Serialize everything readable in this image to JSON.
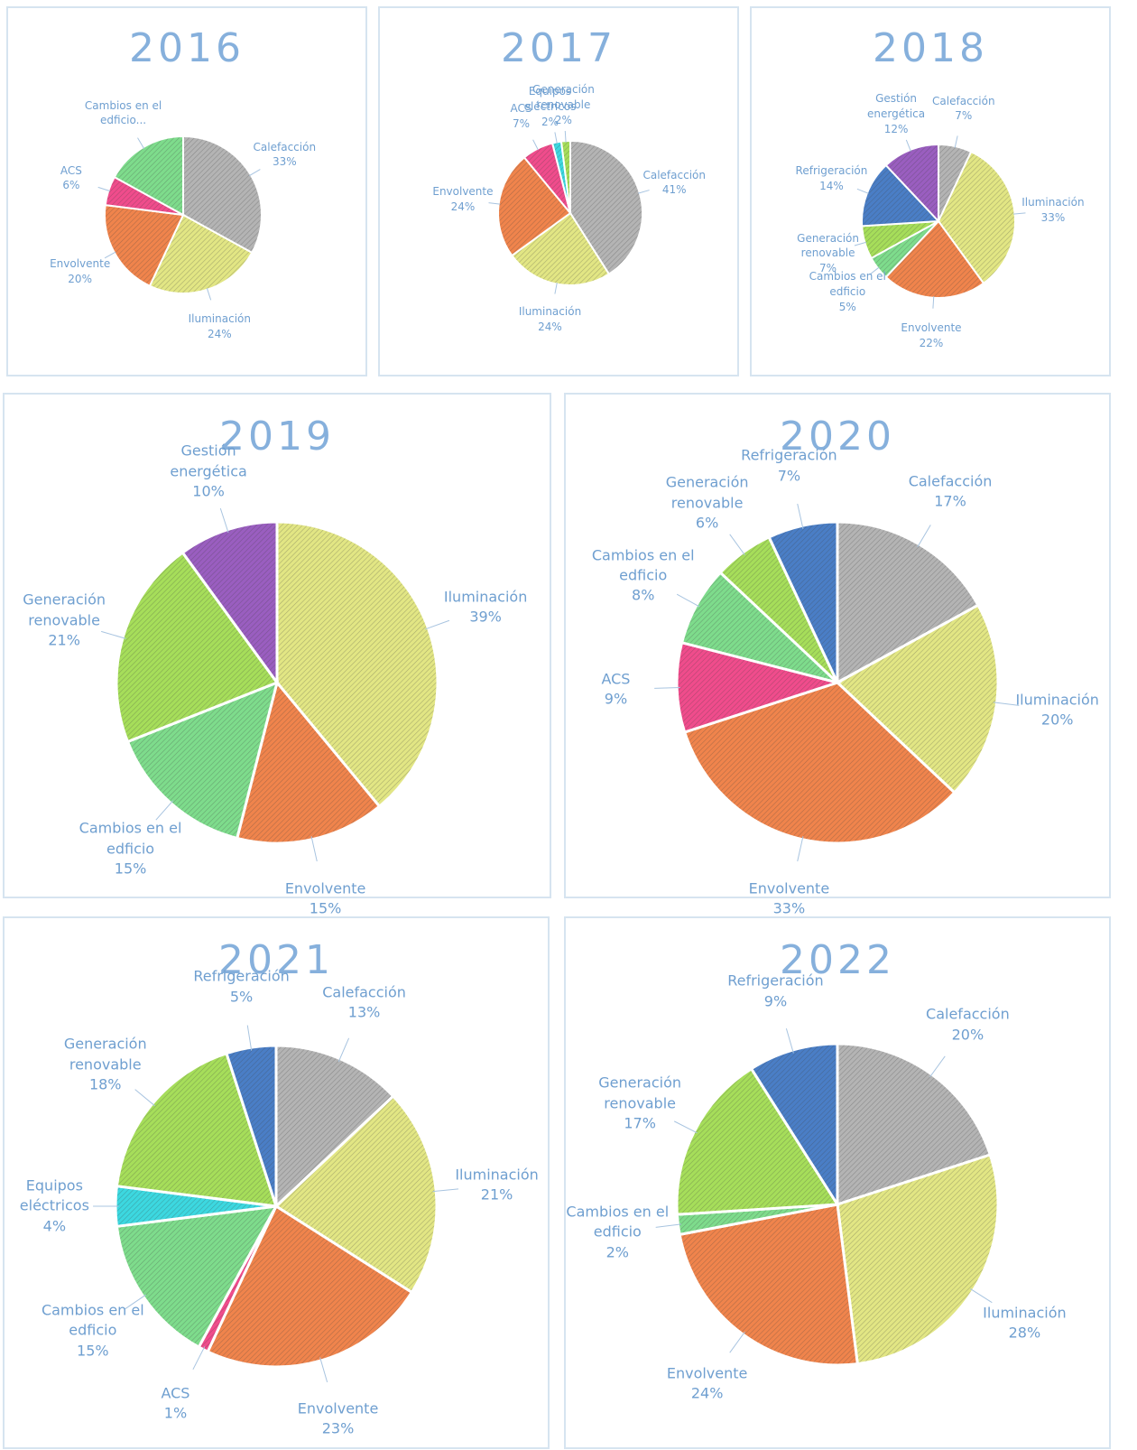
{
  "chart_data": [
    {
      "type": "pie",
      "title": "2016",
      "categories": [
        "Calefacción",
        "Iluminación",
        "Envolvente",
        "ACS",
        "Cambios en el edficio..."
      ],
      "values": [
        33,
        24,
        20,
        6,
        17
      ],
      "value_labels": [
        "33%",
        "24%",
        "20%",
        "6%",
        null
      ],
      "colors": [
        "#b4b4b4",
        "#e2e684",
        "#f0844c",
        "#f04c8c",
        "#7edc8c"
      ]
    },
    {
      "type": "pie",
      "title": "2017",
      "categories": [
        "Calefacción",
        "Iluminación",
        "Envolvente",
        "ACS",
        "Equipos eléctricos",
        "Generación renovable"
      ],
      "values": [
        41,
        24,
        24,
        7,
        2,
        2
      ],
      "value_labels": [
        "41%",
        "24%",
        "24%",
        "7%",
        "2%",
        "2%"
      ],
      "colors": [
        "#b4b4b4",
        "#e2e684",
        "#f0844c",
        "#f04c8c",
        "#3cd8e0",
        "#a6de5a"
      ]
    },
    {
      "type": "pie",
      "title": "2018",
      "categories": [
        "Calefacción",
        "Iluminación",
        "Envolvente",
        "Cambios en el edficio",
        "Generación renovable",
        "Refrigeración",
        "Gestión energética"
      ],
      "values": [
        7,
        33,
        22,
        5,
        7,
        14,
        12
      ],
      "value_labels": [
        "7%",
        "33%",
        "22%",
        "5%",
        "7%",
        "14%",
        "12%"
      ],
      "colors": [
        "#b4b4b4",
        "#e2e684",
        "#f0844c",
        "#7edc8c",
        "#a6de5a",
        "#4a7ec6",
        "#9a5ec0"
      ]
    },
    {
      "type": "pie",
      "title": "2019",
      "categories": [
        "Iluminación",
        "Envolvente",
        "Cambios en el edficio",
        "Generación renovable",
        "Gestión energética"
      ],
      "values": [
        39,
        15,
        15,
        21,
        10
      ],
      "value_labels": [
        "39%",
        "15%",
        "15%",
        "21%",
        "10%"
      ],
      "colors": [
        "#e2e684",
        "#f0844c",
        "#7edc8c",
        "#a6de5a",
        "#9a5ec0"
      ]
    },
    {
      "type": "pie",
      "title": "2020",
      "categories": [
        "Calefacción",
        "Iluminación",
        "Envolvente",
        "ACS",
        "Cambios en el edficio",
        "Generación renovable",
        "Refrigeración"
      ],
      "values": [
        17,
        20,
        33,
        9,
        8,
        6,
        7
      ],
      "value_labels": [
        "17%",
        "20%",
        "33%",
        "9%",
        "8%",
        "6%",
        "7%"
      ],
      "colors": [
        "#b4b4b4",
        "#e2e684",
        "#f0844c",
        "#f04c8c",
        "#7edc8c",
        "#a6de5a",
        "#4a7ec6"
      ]
    },
    {
      "type": "pie",
      "title": "2021",
      "categories": [
        "Calefacción",
        "Iluminación",
        "Envolvente",
        "ACS",
        "Cambios en el edficio",
        "Equipos eléctricos",
        "Generación renovable",
        "Refrigeración"
      ],
      "values": [
        13,
        21,
        23,
        1,
        15,
        4,
        18,
        5
      ],
      "value_labels": [
        "13%",
        "21%",
        "23%",
        "1%",
        "15%",
        "4%",
        "18%",
        "5%"
      ],
      "colors": [
        "#b4b4b4",
        "#e2e684",
        "#f0844c",
        "#f04c8c",
        "#7edc8c",
        "#3cd8e0",
        "#a6de5a",
        "#4a7ec6"
      ]
    },
    {
      "type": "pie",
      "title": "2022",
      "categories": [
        "Calefacción",
        "Iluminación",
        "Envolvente",
        "Cambios en el edficio",
        "Generación renovable",
        "Refrigeración"
      ],
      "values": [
        20,
        28,
        24,
        2,
        17,
        9
      ],
      "value_labels": [
        "20%",
        "28%",
        "24%",
        "2%",
        "17%",
        "9%"
      ],
      "colors": [
        "#b4b4b4",
        "#e2e684",
        "#f0844c",
        "#7edc8c",
        "#a6de5a",
        "#4a7ec6"
      ]
    }
  ]
}
